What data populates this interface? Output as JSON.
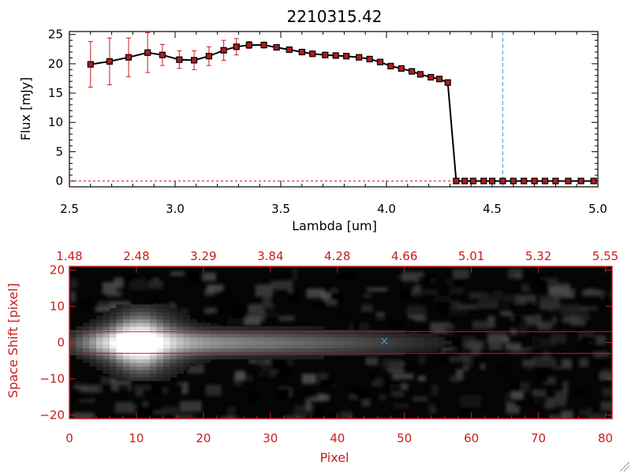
{
  "chart_data": [
    {
      "type": "line",
      "title": "2210315.42",
      "xlabel": "Lambda [um]",
      "ylabel": "Flux [mJy]",
      "xlim": [
        2.5,
        5.0
      ],
      "ylim": [
        -1,
        25.5
      ],
      "xticks": [
        2.5,
        3.0,
        3.5,
        4.0,
        4.5,
        5.0
      ],
      "xtick_labels": [
        "2.5",
        "3.0",
        "3.5",
        "4.0",
        "4.5",
        "5.0"
      ],
      "yticks": [
        0,
        5,
        10,
        15,
        20,
        25
      ],
      "ytick_labels": [
        "0",
        "5",
        "10",
        "15",
        "20",
        "25"
      ],
      "marker_color": "#b01c1c",
      "errorbar_color": "#c41e1e",
      "line_color": "#000000",
      "vline": {
        "x": 4.55,
        "color": "#3a9bd9"
      },
      "series": [
        {
          "x": [
            2.6,
            2.69,
            2.78,
            2.87,
            2.94,
            3.02,
            3.09,
            3.16,
            3.23,
            3.29,
            3.35,
            3.42,
            3.48,
            3.54,
            3.6,
            3.65,
            3.71,
            3.76,
            3.81,
            3.87,
            3.92,
            3.97,
            4.02,
            4.07,
            4.12,
            4.16,
            4.21,
            4.25,
            4.29,
            4.33,
            4.37,
            4.41,
            4.46,
            4.5,
            4.55,
            4.6,
            4.65,
            4.7,
            4.75,
            4.8,
            4.86,
            4.92,
            4.98
          ],
          "y": [
            19.9,
            20.4,
            21.1,
            21.9,
            21.5,
            20.7,
            20.6,
            21.3,
            22.3,
            22.9,
            23.2,
            23.2,
            22.8,
            22.4,
            22.0,
            21.7,
            21.5,
            21.4,
            21.3,
            21.1,
            20.8,
            20.3,
            19.6,
            19.2,
            18.7,
            18.2,
            17.7,
            17.4,
            16.8,
            0,
            0,
            0,
            0,
            0,
            0,
            0,
            0,
            0,
            0,
            0,
            0,
            0,
            0
          ],
          "yerr": [
            3.9,
            4.0,
            3.3,
            3.4,
            1.8,
            1.5,
            1.6,
            1.6,
            1.7,
            1.4,
            0.6,
            0.5,
            0.4,
            0.3,
            0.3,
            0.3,
            0.3,
            0.3,
            0.3,
            0.3,
            0.3,
            0.3,
            0.3,
            0.3,
            0.3,
            0.3,
            0.3,
            0.3,
            0.3,
            0,
            0,
            0,
            0,
            0,
            0,
            0,
            0,
            0,
            0,
            0,
            0,
            0,
            0
          ]
        }
      ]
    },
    {
      "type": "heatmap",
      "xlabel": "Pixel",
      "ylabel": "Space Shift [pixel]",
      "xlim": [
        0,
        81
      ],
      "ylim": [
        -21,
        21
      ],
      "xticks": [
        0,
        10,
        20,
        30,
        40,
        50,
        60,
        70,
        80
      ],
      "xtick_labels": [
        "0",
        "10",
        "20",
        "30",
        "40",
        "50",
        "60",
        "70",
        "80"
      ],
      "yticks": [
        -20,
        -10,
        0,
        10,
        20
      ],
      "ytick_labels": [
        "−20",
        "−10",
        "0",
        "10",
        "20"
      ],
      "top_axis_ticks": [
        0,
        10,
        20,
        30,
        40,
        50,
        60,
        70,
        80
      ],
      "top_axis_labels": [
        "1.48",
        "2.48",
        "3.29",
        "3.84",
        "4.28",
        "4.66",
        "5.01",
        "5.32",
        "5.55"
      ],
      "axis_color": "#c41e1e",
      "aperture_lines": [
        3,
        -3
      ],
      "marker": {
        "x": 47,
        "y": 0.5,
        "color": "#3a9bd9"
      },
      "trace": {
        "center_y": 0,
        "peak_x": 10.5,
        "peak_intensity": 1.0,
        "width": 3.2,
        "fade_start": 12,
        "fade_end": 62,
        "halo_x": 11,
        "halo_y": 0
      }
    }
  ]
}
